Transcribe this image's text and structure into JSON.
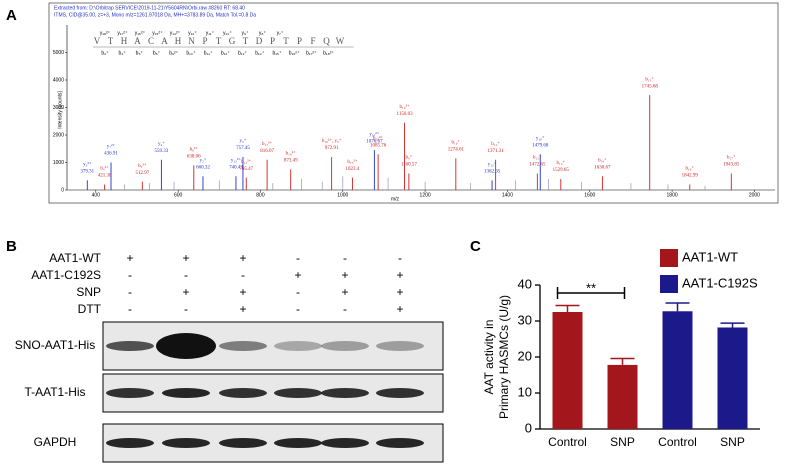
{
  "panel_labels": [
    "A",
    "B",
    "C"
  ],
  "chart_data": [
    {
      "type": "stem",
      "header": [
        "Extracted from: D:\\Orbitrap SERVICE\\2019-11-21\\Y5604RN\\Orbi.raw #8260 RT: 68.40",
        "ITMS, CID@35.00, z=+3, Mono m/z=1261.97018 Da, MH+=3783.89 Da, Match Tol.=0.8 Da"
      ],
      "sequence": [
        "V",
        "T",
        "H",
        "A",
        "C",
        "A",
        "H",
        "N",
        "P",
        "T",
        "G",
        "T",
        "D",
        "P",
        "T",
        "P",
        "F",
        "Q",
        "W"
      ],
      "ion_labels_top": [
        "y₁₈²⁺",
        "y₁₇²⁺",
        "y₁₆²⁺",
        "y₁₅²⁺",
        "y₁₄²⁺",
        "y₁₂⁺",
        "y₁₁⁺",
        "y₁₀⁺",
        "y₉⁺",
        "y₈⁺",
        "y₇⁺"
      ],
      "ion_labels_bottom": [
        "b₂⁺",
        "b₄⁺",
        "b₅⁺",
        "b₆⁺",
        "b₉²⁺",
        "b₁₀⁺",
        "b₁₁⁺",
        "b₁₂⁺",
        "b₁₃⁺",
        "b₁₄⁺",
        "b₁₅⁺",
        "b₁₆²⁺",
        "b₁₇²⁺",
        "b₁₈²⁺"
      ],
      "xlabel": "m/z",
      "ylabel": "Intensity [counts]",
      "xlim": [
        330,
        2050
      ],
      "xticks": [
        400,
        600,
        800,
        1000,
        1200,
        1400,
        1600,
        1800,
        2000
      ],
      "ylim": [
        0,
        6000
      ],
      "yticks": [
        0,
        1000,
        2000,
        3000,
        4000,
        5000
      ],
      "peaks": [
        {
          "ion": "y₃²⁺",
          "x": 379.31,
          "y": 350,
          "color": "#1f2fd0"
        },
        {
          "ion": "b₄²⁺",
          "x": 421.38,
          "y": 200,
          "color": "#d01f1f"
        },
        {
          "ion": "y₇²⁺",
          "x": 436.91,
          "y": 1000,
          "color": "#1f2fd0"
        },
        {
          "ion": "b₅²⁺",
          "x": 512.97,
          "y": 300,
          "color": "#d01f1f"
        },
        {
          "ion": "y₄⁺",
          "x": 559.33,
          "y": 1100,
          "color": "#1f2fd0"
        },
        {
          "ion": "b₆²⁺",
          "x": 638.06,
          "y": 900,
          "color": "#d01f1f"
        },
        {
          "ion": "y₅⁺",
          "x": 660.32,
          "y": 500,
          "color": "#1f2fd0"
        },
        {
          "ion": "y₁₂²⁺",
          "x": 740.43,
          "y": 500,
          "color": "#1f2fd0"
        },
        {
          "ion": "y₅⁺",
          "x": 757.45,
          "y": 1200,
          "color": "#1f2fd0"
        },
        {
          "ion": "b₁₁²⁺",
          "x": 765.47,
          "y": 450,
          "color": "#d01f1f"
        },
        {
          "ion": "b₁₃²⁺",
          "x": 816.07,
          "y": 1100,
          "color": "#d01f1f"
        },
        {
          "ion": "b₁₄²⁺",
          "x": 873.49,
          "y": 750,
          "color": "#d01f1f"
        },
        {
          "ion": "b₁₆²⁺, y₈⁺",
          "x": 972.91,
          "y": 1200,
          "color": "#d01f1f"
        },
        {
          "ion": "b₁₇²⁺",
          "x": 1023.4,
          "y": 450,
          "color": "#d01f1f"
        },
        {
          "ion": "y₁₀²⁺",
          "x": 1076.67,
          "y": 1450,
          "color": "#1f2fd0"
        },
        {
          "ion": "b₁₈²⁺",
          "x": 1085.76,
          "y": 1300,
          "color": "#d01f1f"
        },
        {
          "ion": "b₁₉²⁺",
          "x": 1150.03,
          "y": 2450,
          "color": "#d01f1f"
        },
        {
          "ion": "b₉⁺",
          "x": 1160.57,
          "y": 600,
          "color": "#d01f1f"
        },
        {
          "ion": "b₁₀⁺",
          "x": 1274.61,
          "y": 1150,
          "color": "#d01f1f"
        },
        {
          "ion": "y₁₂⁺",
          "x": 1362.65,
          "y": 350,
          "color": "#1f2fd0"
        },
        {
          "ion": "b₁₁⁺",
          "x": 1371.31,
          "y": 1100,
          "color": "#d01f1f"
        },
        {
          "ion": "b₁₂⁺",
          "x": 1472.65,
          "y": 600,
          "color": "#d01f1f"
        },
        {
          "ion": "y₁₀⁺",
          "x": 1479.68,
          "y": 1300,
          "color": "#1f2fd0"
        },
        {
          "ion": "b₁₃⁺",
          "x": 1529.65,
          "y": 400,
          "color": "#d01f1f"
        },
        {
          "ion": "b₁₄⁺",
          "x": 1630.67,
          "y": 500,
          "color": "#d01f1f"
        },
        {
          "ion": "b₁₅⁺",
          "x": 1745.68,
          "y": 3450,
          "color": "#d01f1f"
        },
        {
          "ion": "b₁₆⁺",
          "x": 1842.99,
          "y": 200,
          "color": "#d01f1f"
        },
        {
          "ion": "b₁₇⁺",
          "x": 1943.85,
          "y": 600,
          "color": "#d01f1f"
        }
      ],
      "minor_peaks": {
        "color": "#9a8fb8",
        "x": [
          470,
          530,
          590,
          700,
          830,
          900,
          950,
          1000,
          1110,
          1200,
          1310,
          1420,
          1500,
          1580,
          1700,
          1790,
          1880
        ],
        "y": [
          200,
          250,
          300,
          350,
          250,
          400,
          300,
          500,
          450,
          300,
          250,
          350,
          400,
          300,
          250,
          200,
          150
        ]
      }
    },
    {
      "type": "bar",
      "ylabel": [
        "AAT activity in",
        "Primary HASMCs (U/g)"
      ],
      "categories": [
        "Control",
        "SNP",
        "Control",
        "SNP"
      ],
      "ylim": [
        0,
        40
      ],
      "yticks": [
        0,
        10,
        20,
        30,
        40
      ],
      "legend": "top-right",
      "annotation": "**",
      "series": [
        {
          "name": "AAT1-WT",
          "color": "#a3171c",
          "values": [
            32.5,
            17.8,
            null,
            null
          ],
          "errors": [
            1.8,
            1.8,
            null,
            null
          ]
        },
        {
          "name": "AAT1-C192S",
          "color": "#1c1a8a",
          "values": [
            null,
            null,
            32.7,
            28.2
          ],
          "errors": [
            null,
            null,
            2.3,
            1.2
          ]
        }
      ]
    }
  ],
  "panel_b": {
    "conditions": [
      {
        "name": "AAT1-WT",
        "signs": [
          "+",
          "+",
          "+",
          "-",
          "-",
          "-"
        ]
      },
      {
        "name": "AAT1-C192S",
        "signs": [
          "-",
          "-",
          "-",
          "+",
          "+",
          "+"
        ]
      },
      {
        "name": "SNP",
        "signs": [
          "-",
          "+",
          "+",
          "-",
          "+",
          "+"
        ]
      },
      {
        "name": "DTT",
        "signs": [
          "-",
          "-",
          "+",
          "-",
          "-",
          "+"
        ]
      }
    ],
    "blots": [
      "SNO-AAT1-His",
      "T-AAT1-His",
      "GAPDH"
    ]
  }
}
